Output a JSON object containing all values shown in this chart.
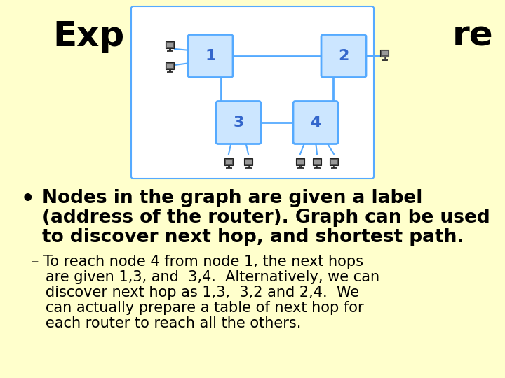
{
  "background_color": "#ffffcc",
  "title_left": "Exp",
  "title_right": "re",
  "title_fontsize": 36,
  "bullet_line1": "Nodes in the graph are given a label",
  "bullet_line2": "(address of the router). Graph can be used",
  "bullet_line3": "to discover next hop, and shortest path.",
  "bullet_fontsize": 19,
  "sub_line1": "– To reach node 4 from node 1, the next hops",
  "sub_line2": "   are given 1,3, and  3,4.  Alternatively, we can",
  "sub_line3": "   discover next hop as 1,3,  3,2 and 2,4.  We",
  "sub_line4": "   can actually prepare a table of next hop for",
  "sub_line5": "   each router to reach all the others.",
  "sub_fontsize": 15,
  "node_color": "#cce6ff",
  "node_border_color": "#55aaff",
  "line_color": "#55aaff",
  "node_label_color": "#3366cc",
  "diagram_bg": "#ffffff",
  "pc_body_color": "#555555",
  "pc_screen_color": "#888888",
  "pc_base_color": "#333333"
}
